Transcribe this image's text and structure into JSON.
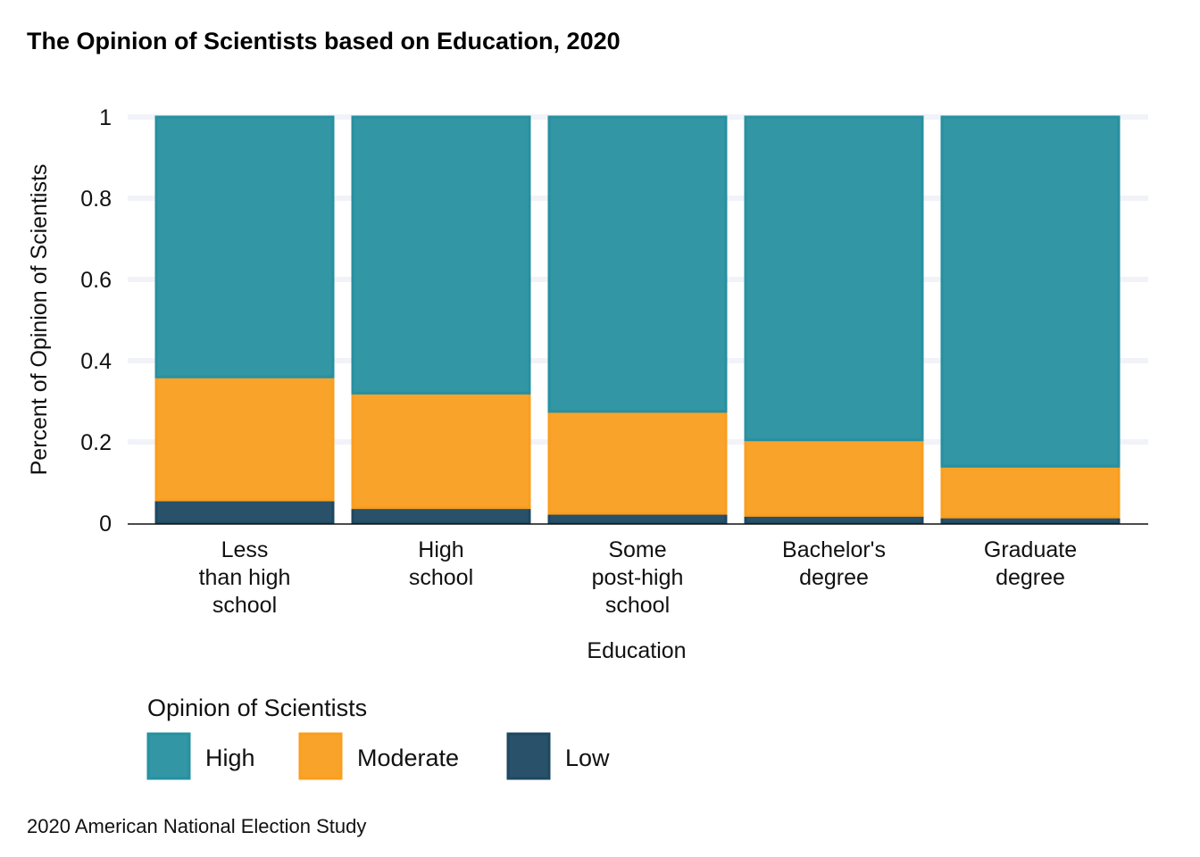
{
  "chart_data": {
    "type": "bar",
    "stacked": true,
    "title": "The Opinion of Scientists based on Education, 2020",
    "xlabel": "Education",
    "ylabel": "Percent of Opinion of Scientists",
    "ylim": [
      0,
      1
    ],
    "yticks": [
      "0",
      "0.2",
      "0.4",
      "0.6",
      "0.8",
      "1"
    ],
    "categories": [
      [
        "Less",
        "than high",
        "school"
      ],
      [
        "High",
        "school"
      ],
      [
        "Some",
        "post-high",
        "school"
      ],
      [
        "Bachelor's",
        "degree"
      ],
      [
        "Graduate",
        "degree"
      ]
    ],
    "series": [
      {
        "name": "Low",
        "color": "#1e4862",
        "values": [
          0.057,
          0.038,
          0.024,
          0.019,
          0.015
        ]
      },
      {
        "name": "Moderate",
        "color": "#fa9e1f",
        "values": [
          0.303,
          0.282,
          0.251,
          0.186,
          0.125
        ]
      },
      {
        "name": "High",
        "color": "#2790a0",
        "values": [
          0.64,
          0.68,
          0.725,
          0.795,
          0.86
        ]
      }
    ],
    "legend": {
      "title": "Opinion of Scientists",
      "position": "bottom",
      "items": [
        "High",
        "Moderate",
        "Low"
      ]
    },
    "grid": true,
    "caption": "2020 American National Election Study"
  }
}
